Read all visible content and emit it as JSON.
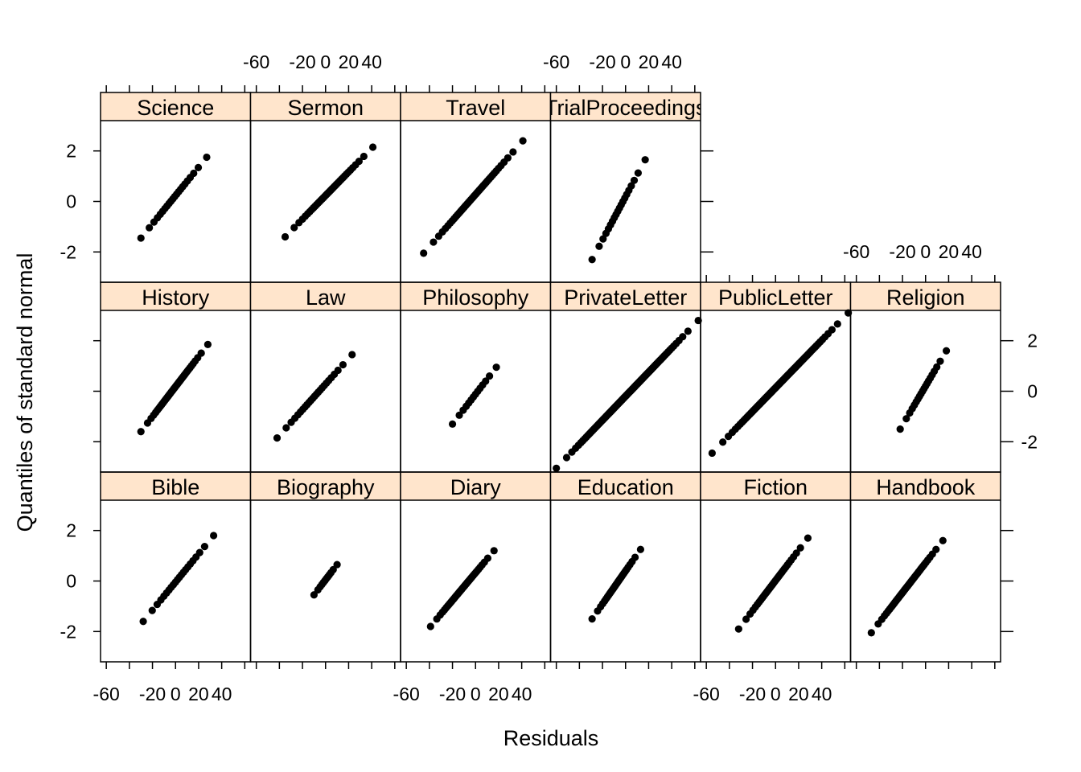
{
  "chart_data": {
    "type": "scatter",
    "kind": "trellis-normal-qq-plot",
    "xlabel": "Residuals",
    "ylabel": "Quantiles of standard normal",
    "xlim": [
      -65,
      65
    ],
    "ylim": [
      -3.2,
      3.2
    ],
    "x_ticks": [
      -60,
      -40,
      -20,
      0,
      20,
      40,
      60
    ],
    "x_tick_labels": [
      -60,
      -20,
      0,
      20,
      40
    ],
    "y_ticks": [
      -2,
      0,
      2
    ],
    "strip_color": "#ffe5cc",
    "point_color": "#000000",
    "grid": false,
    "layout": {
      "columns": 6,
      "rows": 3
    },
    "panels": [
      {
        "name": "Bible",
        "row": 0,
        "col": 0,
        "n": 22,
        "xmin": -28,
        "xmax": 33,
        "ymin": -1.6,
        "ymax": 1.8
      },
      {
        "name": "Biography",
        "row": 0,
        "col": 1,
        "n": 12,
        "xmin": -10,
        "xmax": 10,
        "ymin": -0.55,
        "ymax": 0.65
      },
      {
        "name": "Diary",
        "row": 0,
        "col": 2,
        "n": 45,
        "xmin": -39,
        "xmax": 16,
        "ymin": -1.8,
        "ymax": 1.2
      },
      {
        "name": "Education",
        "row": 0,
        "col": 3,
        "n": 30,
        "xmin": -29,
        "xmax": 13,
        "ymin": -1.5,
        "ymax": 1.25
      },
      {
        "name": "Fiction",
        "row": 0,
        "col": 4,
        "n": 35,
        "xmin": -32,
        "xmax": 28,
        "ymin": -1.9,
        "ymax": 1.7
      },
      {
        "name": "Handbook",
        "row": 0,
        "col": 5,
        "n": 50,
        "xmin": -47,
        "xmax": 15,
        "ymin": -2.05,
        "ymax": 1.6
      },
      {
        "name": "History",
        "row": 1,
        "col": 0,
        "n": 45,
        "xmin": -30,
        "xmax": 28,
        "ymin": -1.6,
        "ymax": 1.85
      },
      {
        "name": "Law",
        "row": 1,
        "col": 1,
        "n": 25,
        "xmin": -42,
        "xmax": 23,
        "ymin": -1.85,
        "ymax": 1.45
      },
      {
        "name": "Philosophy",
        "row": 1,
        "col": 2,
        "n": 14,
        "xmin": -20,
        "xmax": 18,
        "ymin": -1.3,
        "ymax": 0.95
      },
      {
        "name": "PrivateLetter",
        "row": 1,
        "col": 3,
        "n": 140,
        "xmin": -60,
        "xmax": 63,
        "ymin": -3.05,
        "ymax": 2.8
      },
      {
        "name": "PublicLetter",
        "row": 1,
        "col": 4,
        "n": 100,
        "xmin": -55,
        "xmax": 63,
        "ymin": -2.45,
        "ymax": 3.1
      },
      {
        "name": "Religion",
        "row": 1,
        "col": 5,
        "n": 20,
        "xmin": -22,
        "xmax": 18,
        "ymin": -1.5,
        "ymax": 1.6
      },
      {
        "name": "Science",
        "row": 2,
        "col": 0,
        "n": 22,
        "xmin": -30,
        "xmax": 27,
        "ymin": -1.45,
        "ymax": 1.75
      },
      {
        "name": "Sermon",
        "row": 2,
        "col": 1,
        "n": 40,
        "xmin": -35,
        "xmax": 41,
        "ymin": -1.4,
        "ymax": 2.15
      },
      {
        "name": "Travel",
        "row": 2,
        "col": 2,
        "n": 45,
        "xmin": -45,
        "xmax": 41,
        "ymin": -2.05,
        "ymax": 2.4
      },
      {
        "name": "TrialProceedings",
        "row": 2,
        "col": 3,
        "n": 20,
        "xmin": -29,
        "xmax": 17,
        "ymin": -2.3,
        "ymax": 1.65
      }
    ]
  }
}
